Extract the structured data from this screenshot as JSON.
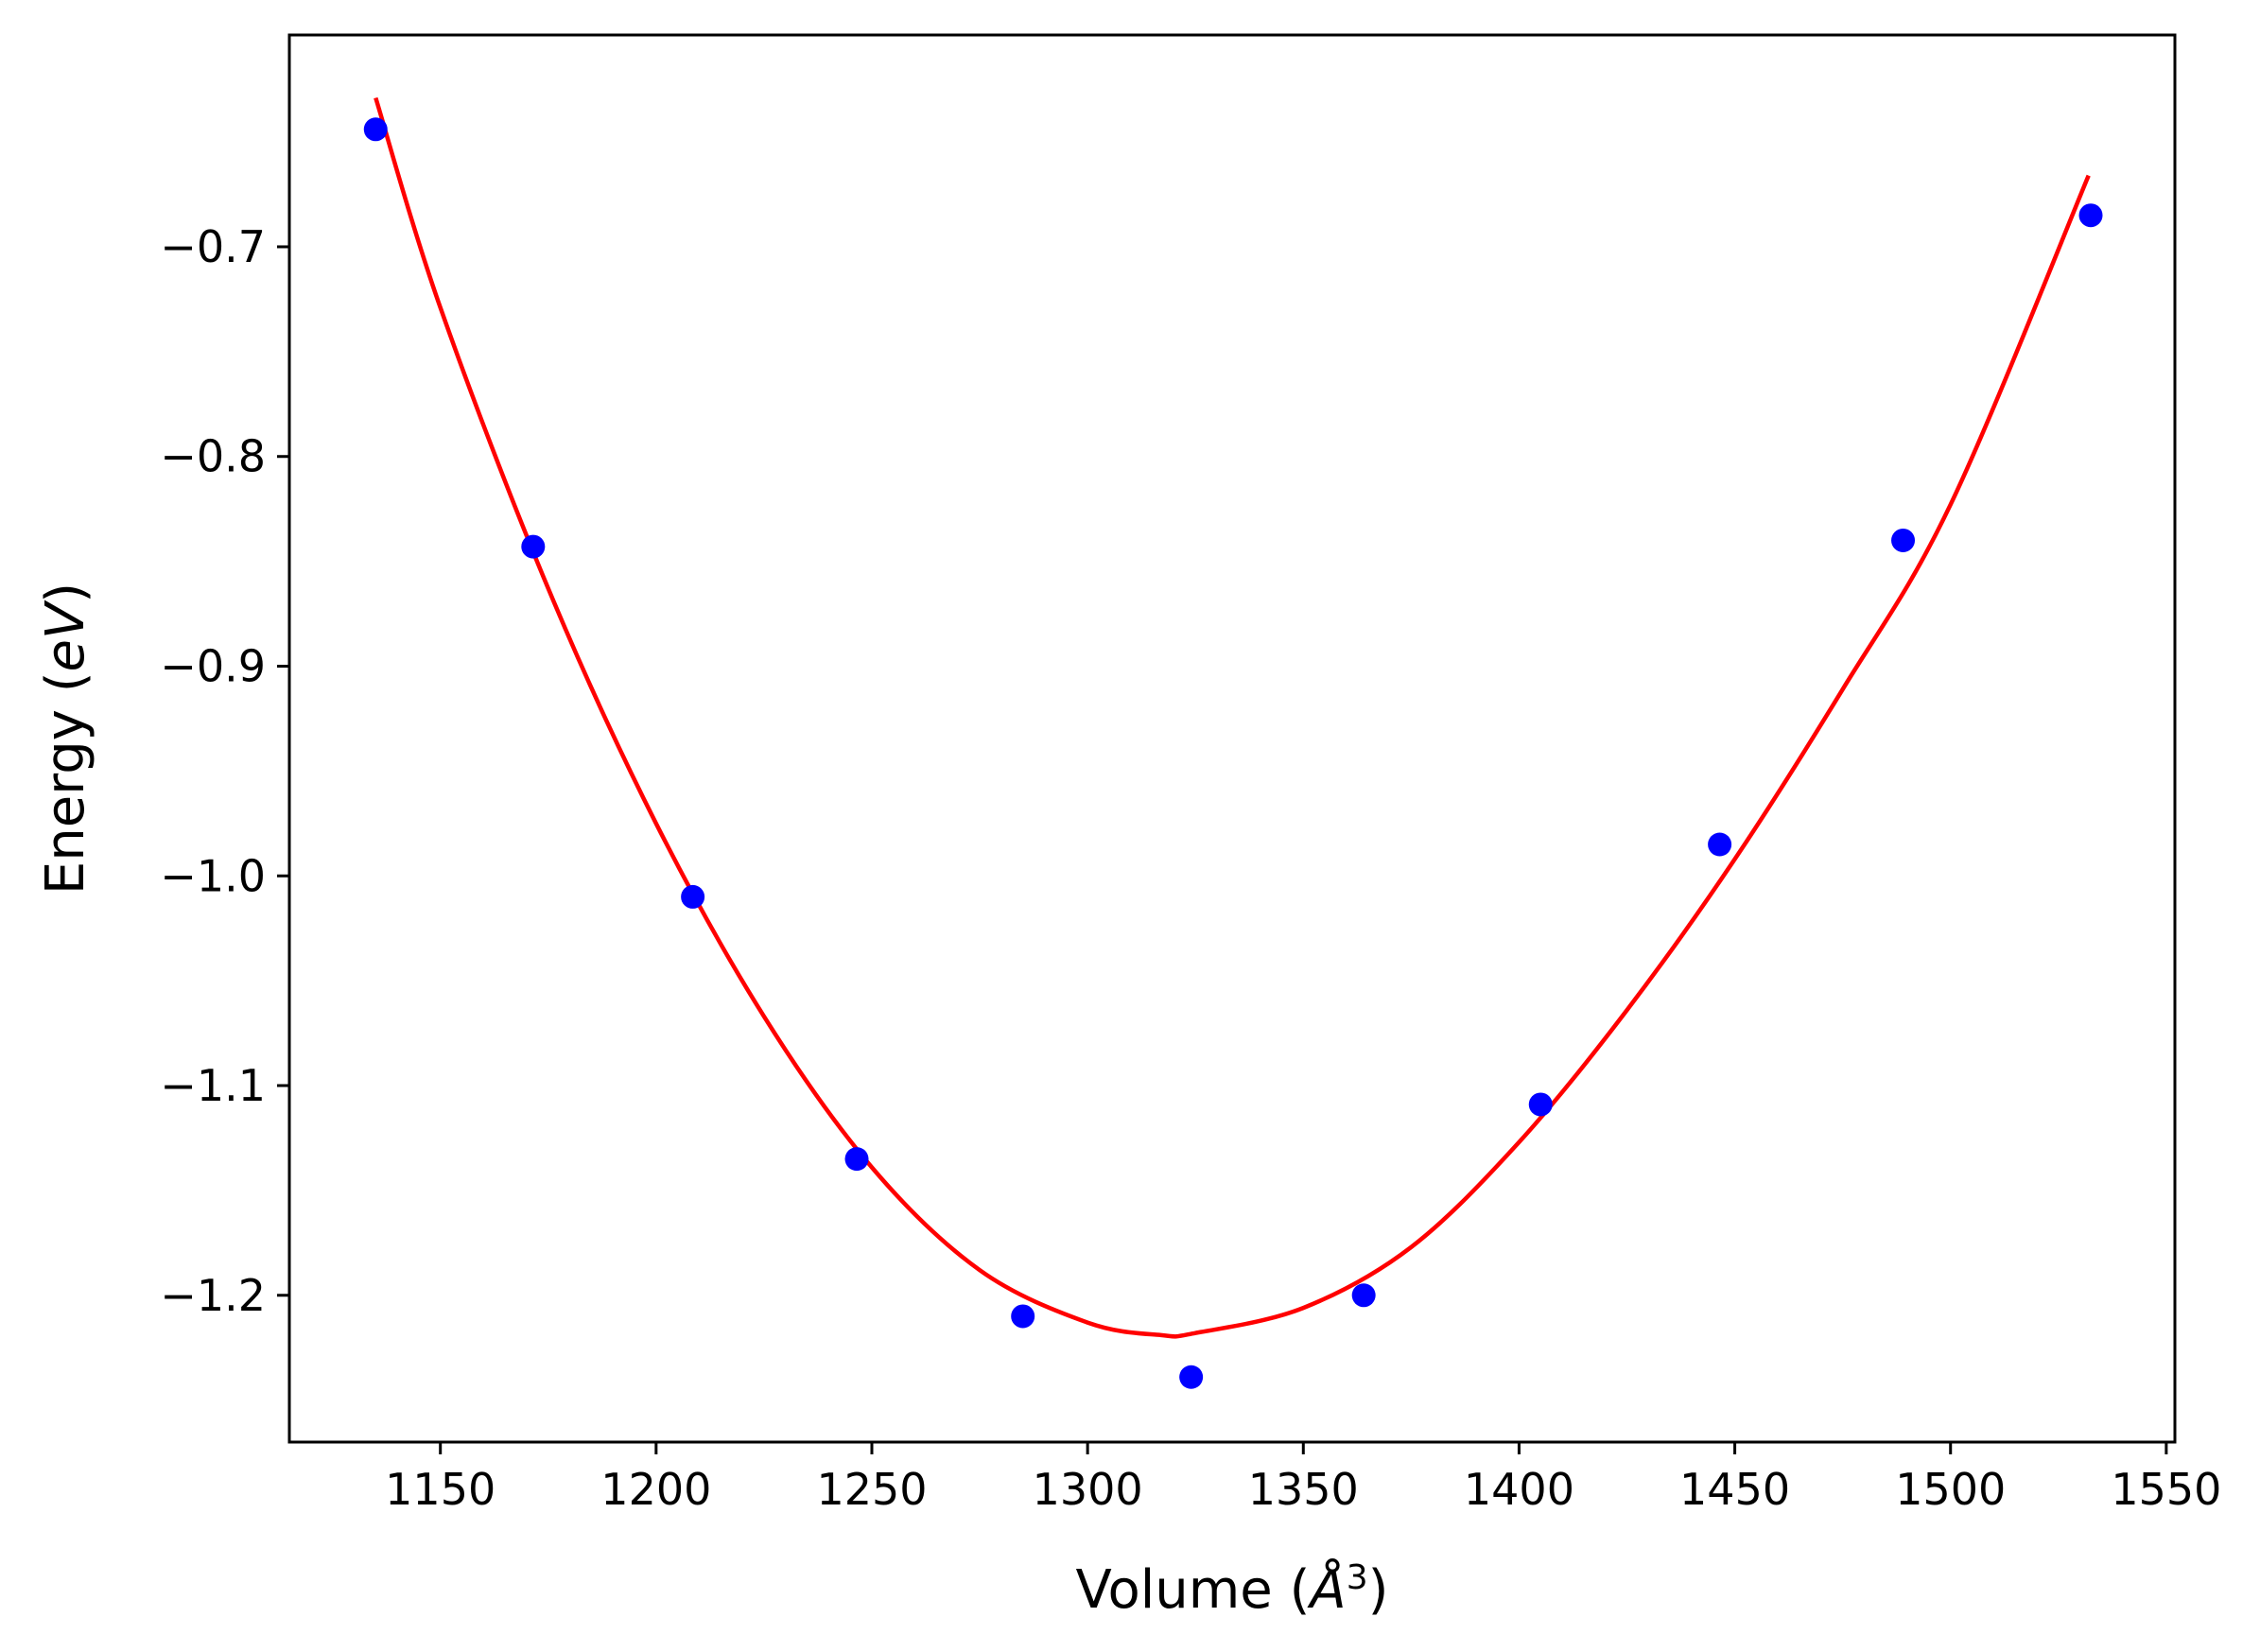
{
  "chart_data": {
    "type": "scatter",
    "title": "",
    "xlabel_parts": [
      "Volume (",
      "Å",
      "3",
      ")"
    ],
    "ylabel_parts": [
      "Energy (",
      "eV",
      ")"
    ],
    "xlim": [
      1115,
      1552
    ],
    "ylim": [
      -1.27,
      -0.599
    ],
    "xticks": [
      1150,
      1200,
      1250,
      1300,
      1350,
      1400,
      1450,
      1500,
      1550
    ],
    "xtick_labels": [
      "1150",
      "1200",
      "1250",
      "1300",
      "1350",
      "1400",
      "1450",
      "1500",
      "1550"
    ],
    "yticks": [
      -0.7,
      -0.8,
      -0.9,
      -1.0,
      -1.1,
      -1.2
    ],
    "ytick_labels": [
      "−0.7",
      "−0.8",
      "−0.9",
      "−1.0",
      "−1.1",
      "−1.2"
    ],
    "grid": false,
    "series": [
      {
        "kind": "points",
        "color": "#0000ff",
        "x": [
          1135,
          1171.5,
          1208.5,
          1246.5,
          1285,
          1324,
          1364,
          1405,
          1446.5,
          1489,
          1532.5
        ],
        "y": [
          -0.644,
          -0.843,
          -1.01,
          -1.135,
          -1.21,
          -1.239,
          -1.2,
          -1.109,
          -0.985,
          -0.84,
          -0.685
        ]
      },
      {
        "kind": "fit-curve",
        "color": "#ff0000",
        "x": [
          1135,
          1150,
          1175,
          1200,
          1225,
          1250,
          1275,
          1300,
          1317,
          1325,
          1350,
          1375,
          1400,
          1425,
          1450,
          1475,
          1500,
          1532
        ],
        "y": [
          -0.629,
          -0.729,
          -0.863,
          -0.975,
          -1.067,
          -1.139,
          -1.188,
          -1.213,
          -1.219,
          -1.218,
          -1.206,
          -1.177,
          -1.127,
          -1.064,
          -0.992,
          -0.911,
          -0.823,
          -0.666
        ]
      }
    ]
  }
}
